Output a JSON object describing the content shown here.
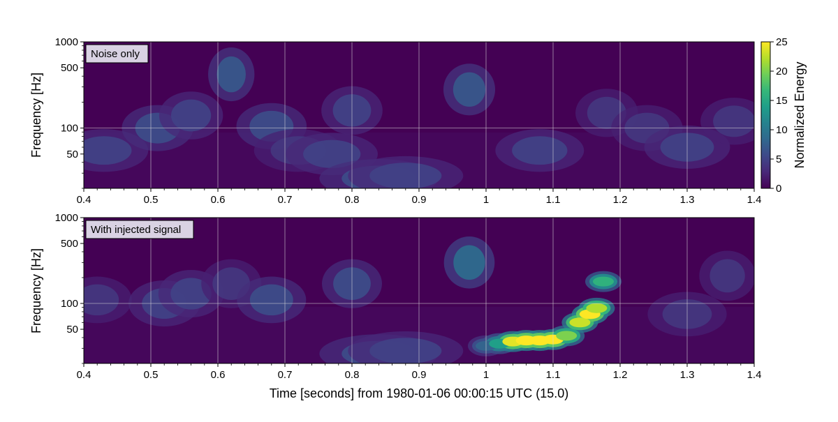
{
  "chart_data": [
    {
      "type": "heatmap",
      "panel_label": "Noise only",
      "x_range": [
        0.4,
        1.4
      ],
      "y_scale": "log",
      "y_range": [
        20,
        1000
      ],
      "x_ticks": [
        "0.4",
        "0.5",
        "0.6",
        "0.7",
        "0.8",
        "0.9",
        "1",
        "1.1",
        "1.2",
        "1.3",
        "1.4"
      ],
      "y_ticks": [
        "1000",
        "500",
        "100",
        "50"
      ],
      "ylabel": "Frequency [Hz]",
      "grid": true,
      "colormap": "viridis",
      "signal": null,
      "noise_blobs": [
        {
          "t": 0.43,
          "f": 55,
          "e": 5
        },
        {
          "t": 0.51,
          "f": 100,
          "e": 6
        },
        {
          "t": 0.56,
          "f": 140,
          "e": 5
        },
        {
          "t": 0.62,
          "f": 420,
          "e": 7
        },
        {
          "t": 0.68,
          "f": 105,
          "e": 6
        },
        {
          "t": 0.72,
          "f": 55,
          "e": 4
        },
        {
          "t": 0.77,
          "f": 50,
          "e": 5
        },
        {
          "t": 0.84,
          "f": 26,
          "e": 6
        },
        {
          "t": 0.88,
          "f": 28,
          "e": 5
        },
        {
          "t": 0.8,
          "f": 160,
          "e": 5
        },
        {
          "t": 0.975,
          "f": 280,
          "e": 7
        },
        {
          "t": 1.08,
          "f": 55,
          "e": 5
        },
        {
          "t": 1.18,
          "f": 150,
          "e": 4
        },
        {
          "t": 1.24,
          "f": 100,
          "e": 4
        },
        {
          "t": 1.3,
          "f": 60,
          "e": 5
        },
        {
          "t": 1.37,
          "f": 120,
          "e": 4
        }
      ]
    },
    {
      "type": "heatmap",
      "panel_label": "With injected signal",
      "x_range": [
        0.4,
        1.4
      ],
      "y_scale": "log",
      "y_range": [
        20,
        1000
      ],
      "x_ticks": [
        "0.4",
        "0.5",
        "0.6",
        "0.7",
        "0.8",
        "0.9",
        "1",
        "1.1",
        "1.2",
        "1.3",
        "1.4"
      ],
      "y_ticks": [
        "1000",
        "500",
        "100",
        "50"
      ],
      "ylabel": "Frequency [Hz]",
      "xlabel": "Time [seconds] from 1980-01-06 00:00:15 UTC (15.0)",
      "grid": true,
      "colormap": "viridis",
      "signal": {
        "track": [
          {
            "t": 1.0,
            "f": 32,
            "e": 8
          },
          {
            "t": 1.02,
            "f": 34,
            "e": 14
          },
          {
            "t": 1.04,
            "f": 36,
            "e": 24
          },
          {
            "t": 1.06,
            "f": 37,
            "e": 25
          },
          {
            "t": 1.08,
            "f": 37,
            "e": 25
          },
          {
            "t": 1.1,
            "f": 38,
            "e": 25
          },
          {
            "t": 1.12,
            "f": 42,
            "e": 20
          },
          {
            "t": 1.14,
            "f": 60,
            "e": 23
          },
          {
            "t": 1.155,
            "f": 75,
            "e": 25
          },
          {
            "t": 1.165,
            "f": 88,
            "e": 22
          },
          {
            "t": 1.175,
            "f": 180,
            "e": 16
          }
        ]
      },
      "noise_blobs": [
        {
          "t": 0.42,
          "f": 110,
          "e": 4
        },
        {
          "t": 0.52,
          "f": 100,
          "e": 5
        },
        {
          "t": 0.56,
          "f": 130,
          "e": 5
        },
        {
          "t": 0.62,
          "f": 170,
          "e": 4
        },
        {
          "t": 0.68,
          "f": 110,
          "e": 6
        },
        {
          "t": 0.8,
          "f": 170,
          "e": 6
        },
        {
          "t": 0.84,
          "f": 26,
          "e": 6
        },
        {
          "t": 0.88,
          "f": 28,
          "e": 5
        },
        {
          "t": 0.975,
          "f": 300,
          "e": 9
        },
        {
          "t": 1.3,
          "f": 75,
          "e": 4
        },
        {
          "t": 1.36,
          "f": 210,
          "e": 4
        }
      ]
    }
  ],
  "colorbar": {
    "label": "Normalized Energy",
    "min": 0,
    "max": 25,
    "ticks": [
      "0",
      "5",
      "10",
      "15",
      "20",
      "25"
    ],
    "colormap": "viridis"
  },
  "colors": {
    "background_low": "#440154",
    "signal_high": "#fde725",
    "grid": "#d8d8d8"
  }
}
